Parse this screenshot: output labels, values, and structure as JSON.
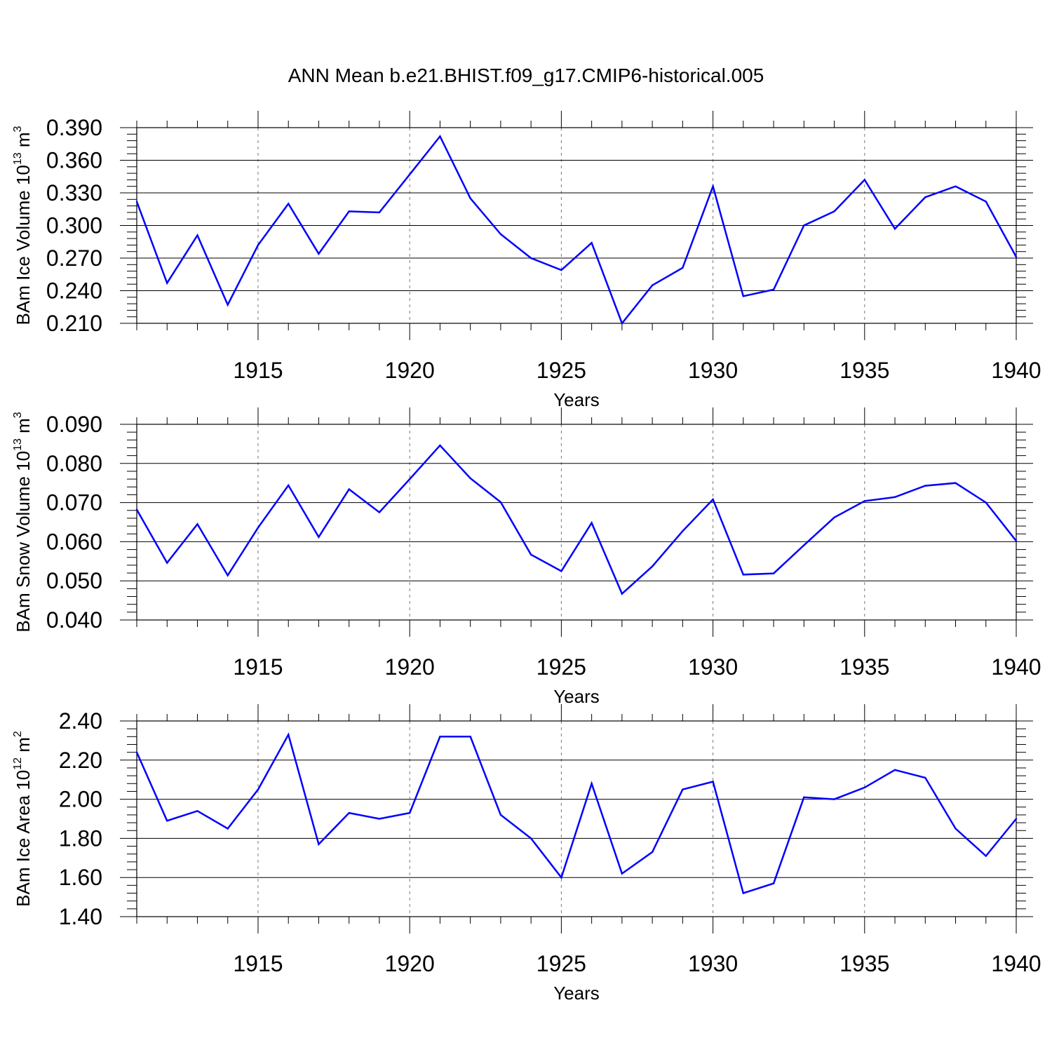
{
  "figure": {
    "title": "ANN Mean b.e21.BHIST.f09_g17.CMIP6-historical.005",
    "line_color": "#0000ff"
  },
  "chart_data": [
    {
      "type": "line",
      "title": "",
      "ylabel": {
        "text": "BAm Ice Volume 10",
        "exp": "13",
        "unit": " m",
        "unit_exp": "3"
      },
      "xlabel": "Years",
      "xlim": [
        1911,
        1940
      ],
      "ylim": [
        0.21,
        0.39
      ],
      "xticks": [
        1915,
        1920,
        1925,
        1930,
        1935,
        1940
      ],
      "yticks": [
        "0.210",
        "0.240",
        "0.270",
        "0.300",
        "0.330",
        "0.360",
        "0.390"
      ],
      "x": [
        1911,
        1912,
        1913,
        1914,
        1915,
        1916,
        1917,
        1918,
        1919,
        1920,
        1921,
        1922,
        1923,
        1924,
        1925,
        1926,
        1927,
        1928,
        1929,
        1930,
        1931,
        1932,
        1933,
        1934,
        1935,
        1936,
        1937,
        1938,
        1939,
        1940
      ],
      "values": [
        0.322,
        0.247,
        0.291,
        0.227,
        0.282,
        0.32,
        0.274,
        0.313,
        0.312,
        0.347,
        0.382,
        0.325,
        0.292,
        0.27,
        0.259,
        0.284,
        0.21,
        0.245,
        0.261,
        0.336,
        0.235,
        0.241,
        0.3,
        0.313,
        0.342,
        0.297,
        0.326,
        0.336,
        0.322,
        0.271
      ]
    },
    {
      "type": "line",
      "title": "",
      "ylabel": {
        "text": "BAm Snow Volume 10",
        "exp": "13",
        "unit": " m",
        "unit_exp": "3"
      },
      "xlabel": "Years",
      "xlim": [
        1911,
        1940
      ],
      "ylim": [
        0.04,
        0.09
      ],
      "xticks": [
        1915,
        1920,
        1925,
        1930,
        1935,
        1940
      ],
      "yticks": [
        "0.040",
        "0.050",
        "0.060",
        "0.070",
        "0.080",
        "0.090"
      ],
      "x": [
        1911,
        1912,
        1913,
        1914,
        1915,
        1916,
        1917,
        1918,
        1919,
        1920,
        1921,
        1922,
        1923,
        1924,
        1925,
        1926,
        1927,
        1928,
        1929,
        1930,
        1931,
        1932,
        1933,
        1934,
        1935,
        1936,
        1937,
        1938,
        1939,
        1940
      ],
      "values": [
        0.0682,
        0.0546,
        0.0645,
        0.0514,
        0.0636,
        0.0744,
        0.0612,
        0.0734,
        0.0675,
        0.076,
        0.0846,
        0.0762,
        0.0701,
        0.0567,
        0.0525,
        0.0648,
        0.0467,
        0.0537,
        0.0627,
        0.0708,
        0.0516,
        0.0519,
        0.0591,
        0.0662,
        0.0704,
        0.0714,
        0.0743,
        0.075,
        0.07,
        0.0602
      ]
    },
    {
      "type": "line",
      "title": "",
      "ylabel": {
        "text": "BAm Ice Area 10",
        "exp": "12",
        "unit": " m",
        "unit_exp": "2"
      },
      "xlabel": "Years",
      "xlim": [
        1911,
        1940
      ],
      "ylim": [
        1.4,
        2.4
      ],
      "xticks": [
        1915,
        1920,
        1925,
        1930,
        1935,
        1940
      ],
      "yticks": [
        "1.40",
        "1.60",
        "1.80",
        "2.00",
        "2.20",
        "2.40"
      ],
      "x": [
        1911,
        1912,
        1913,
        1914,
        1915,
        1916,
        1917,
        1918,
        1919,
        1920,
        1921,
        1922,
        1923,
        1924,
        1925,
        1926,
        1927,
        1928,
        1929,
        1930,
        1931,
        1932,
        1933,
        1934,
        1935,
        1936,
        1937,
        1938,
        1939,
        1940
      ],
      "values": [
        2.24,
        1.89,
        1.94,
        1.85,
        2.05,
        2.33,
        1.77,
        1.93,
        1.9,
        1.93,
        2.32,
        2.32,
        1.92,
        1.8,
        1.6,
        2.08,
        1.62,
        1.73,
        2.05,
        2.09,
        1.52,
        1.57,
        2.01,
        2.0,
        2.06,
        2.15,
        2.11,
        1.85,
        1.71,
        1.9
      ]
    }
  ]
}
